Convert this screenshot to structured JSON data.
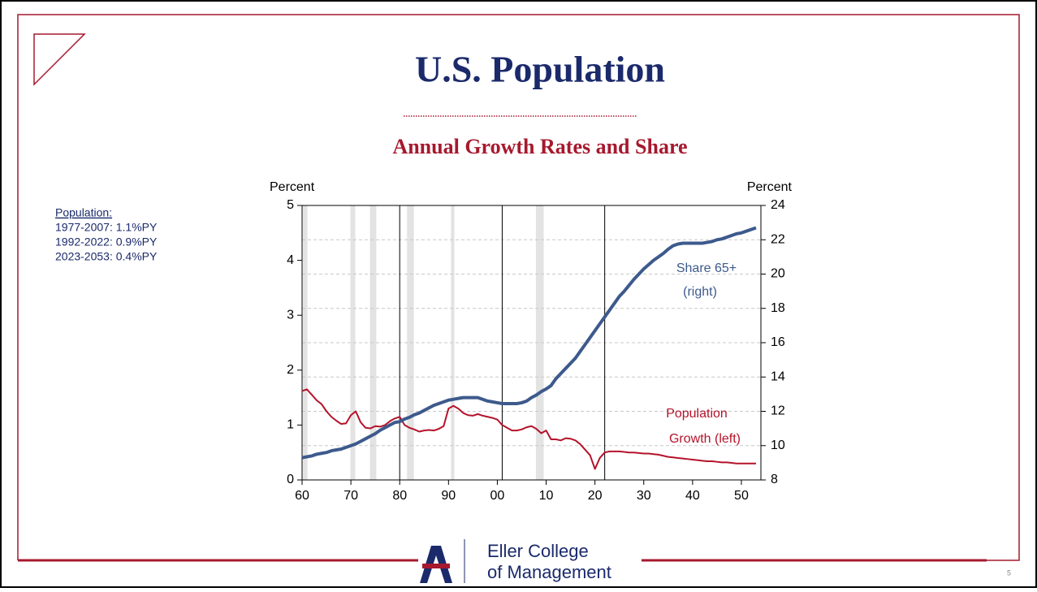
{
  "slide": {
    "title": "U.S. Population",
    "notes_heading": "Population:",
    "notes": [
      "1977-2007: 1.1%PY",
      "1992-2022: 0.9%PY",
      "2023-2053: 0.4%PY"
    ],
    "logo_lines": [
      "Eller College",
      "of Management"
    ],
    "page_number": "5"
  },
  "chart_data": {
    "type": "line",
    "title": "Annual Growth Rates and Share",
    "ylabel": "Percent",
    "y2label": "Percent",
    "x": [
      1960,
      1961,
      1962,
      1963,
      1964,
      1965,
      1966,
      1967,
      1968,
      1969,
      1970,
      1971,
      1972,
      1973,
      1974,
      1975,
      1976,
      1977,
      1978,
      1979,
      1980,
      1981,
      1982,
      1983,
      1984,
      1985,
      1986,
      1987,
      1988,
      1989,
      1990,
      1991,
      1992,
      1993,
      1994,
      1995,
      1996,
      1997,
      1998,
      1999,
      2000,
      2001,
      2002,
      2003,
      2004,
      2005,
      2006,
      2007,
      2008,
      2009,
      2010,
      2011,
      2012,
      2013,
      2014,
      2015,
      2016,
      2017,
      2018,
      2019,
      2020,
      2021,
      2022,
      2023,
      2024,
      2025,
      2026,
      2027,
      2028,
      2029,
      2030,
      2031,
      2032,
      2033,
      2034,
      2035,
      2036,
      2037,
      2038,
      2039,
      2040,
      2041,
      2042,
      2043,
      2044,
      2045,
      2046,
      2047,
      2048,
      2049,
      2050,
      2051,
      2052,
      2053
    ],
    "series": [
      {
        "name": "Population Growth (left)",
        "color": "#b5132a",
        "axis": "y",
        "values": [
          1.62,
          1.65,
          1.55,
          1.45,
          1.38,
          1.25,
          1.15,
          1.08,
          1.02,
          1.03,
          1.18,
          1.25,
          1.05,
          0.95,
          0.94,
          0.98,
          0.97,
          1.0,
          1.07,
          1.12,
          1.15,
          1.0,
          0.95,
          0.92,
          0.88,
          0.9,
          0.91,
          0.9,
          0.93,
          0.98,
          1.3,
          1.35,
          1.3,
          1.22,
          1.18,
          1.17,
          1.2,
          1.17,
          1.15,
          1.13,
          1.1,
          1.0,
          0.95,
          0.9,
          0.9,
          0.92,
          0.96,
          0.98,
          0.93,
          0.85,
          0.9,
          0.74,
          0.74,
          0.72,
          0.76,
          0.75,
          0.72,
          0.65,
          0.55,
          0.45,
          0.2,
          0.4,
          0.5,
          0.52,
          0.52,
          0.52,
          0.51,
          0.5,
          0.5,
          0.49,
          0.48,
          0.48,
          0.47,
          0.46,
          0.44,
          0.42,
          0.41,
          0.4,
          0.39,
          0.38,
          0.37,
          0.36,
          0.35,
          0.34,
          0.34,
          0.33,
          0.32,
          0.32,
          0.31,
          0.3,
          0.3,
          0.3,
          0.3,
          0.3
        ]
      },
      {
        "name": "Share 65+ (right)",
        "color": "#3d5a8c",
        "axis": "y2",
        "values": [
          9.3,
          9.35,
          9.4,
          9.5,
          9.55,
          9.6,
          9.7,
          9.75,
          9.8,
          9.9,
          10.0,
          10.1,
          10.25,
          10.4,
          10.55,
          10.7,
          10.9,
          11.05,
          11.2,
          11.35,
          11.4,
          11.55,
          11.65,
          11.8,
          11.9,
          12.05,
          12.2,
          12.35,
          12.45,
          12.55,
          12.65,
          12.7,
          12.75,
          12.8,
          12.8,
          12.8,
          12.8,
          12.7,
          12.6,
          12.55,
          12.5,
          12.45,
          12.45,
          12.45,
          12.45,
          12.5,
          12.6,
          12.8,
          12.95,
          13.15,
          13.3,
          13.5,
          13.9,
          14.2,
          14.5,
          14.8,
          15.1,
          15.5,
          15.9,
          16.3,
          16.7,
          17.1,
          17.5,
          17.9,
          18.3,
          18.7,
          19.0,
          19.35,
          19.7,
          20.0,
          20.3,
          20.55,
          20.8,
          21.0,
          21.2,
          21.45,
          21.65,
          21.75,
          21.8,
          21.8,
          21.8,
          21.8,
          21.8,
          21.85,
          21.9,
          22.0,
          22.05,
          22.15,
          22.25,
          22.35,
          22.4,
          22.5,
          22.6,
          22.7
        ]
      }
    ],
    "annotations": [
      "Share 65+",
      "(right)",
      "Population",
      "Growth (left)"
    ],
    "xlim": [
      1960,
      2054
    ],
    "xticks": [
      {
        "value": 1960,
        "label": "60"
      },
      {
        "value": 1970,
        "label": "70"
      },
      {
        "value": 1980,
        "label": "80"
      },
      {
        "value": 1990,
        "label": "90"
      },
      {
        "value": 2000,
        "label": "00"
      },
      {
        "value": 2010,
        "label": "10"
      },
      {
        "value": 2020,
        "label": "20"
      },
      {
        "value": 2030,
        "label": "30"
      },
      {
        "value": 2040,
        "label": "40"
      },
      {
        "value": 2050,
        "label": "50"
      }
    ],
    "ylim": [
      0,
      5
    ],
    "yticks": [
      0,
      1,
      2,
      3,
      4,
      5
    ],
    "y2lim": [
      8,
      24
    ],
    "y2ticks": [
      8,
      10,
      12,
      14,
      16,
      18,
      20,
      22,
      24
    ],
    "shaded_periods": [
      [
        1960.2,
        1961.1
      ],
      [
        1969.9,
        1970.9
      ],
      [
        1973.9,
        1975.2
      ],
      [
        1981.5,
        1982.9
      ],
      [
        1990.5,
        1991.2
      ],
      [
        2007.9,
        2009.5
      ]
    ],
    "shade_color": "#e3e3e3",
    "vlines": [
      1980,
      2001,
      2022
    ],
    "grid": true
  }
}
